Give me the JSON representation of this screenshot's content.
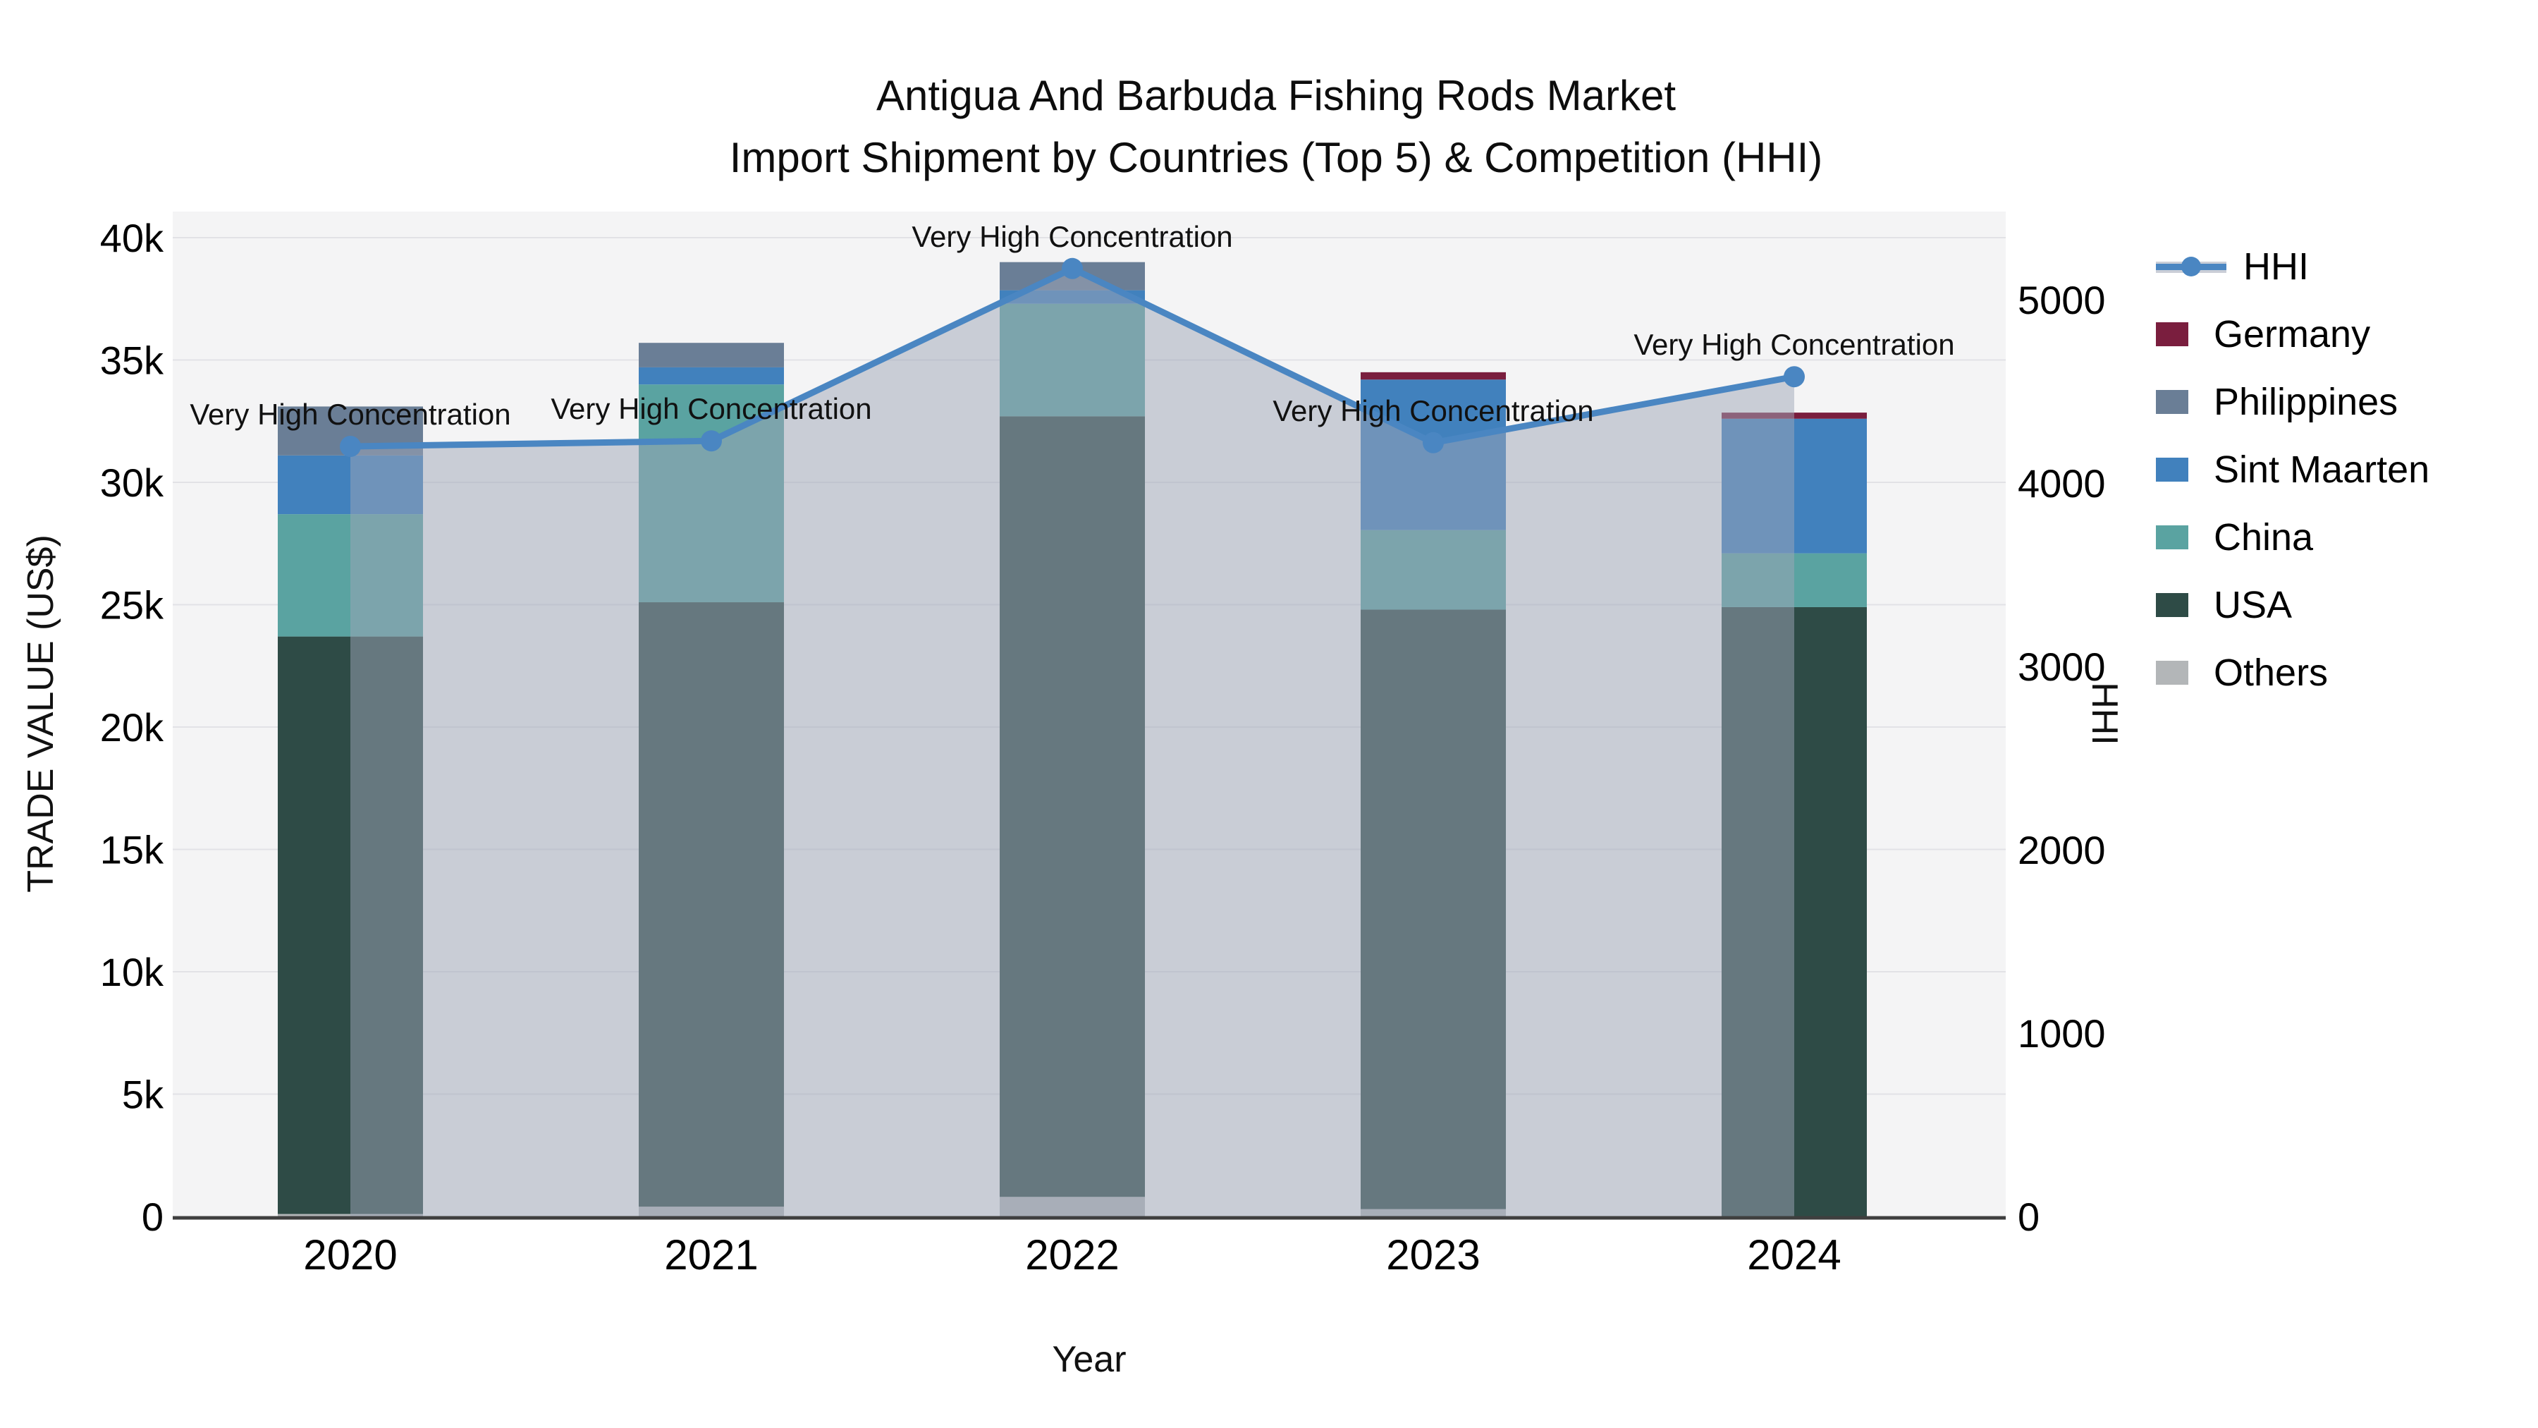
{
  "title": {
    "line1": "Antigua And Barbuda Fishing Rods Market",
    "line2": "Import Shipment by Countries (Top 5) & Competition (HHI)"
  },
  "axes": {
    "x_title": "Year",
    "y_left_title": "TRADE VALUE (US$)",
    "y_right_title": "HHI",
    "x_ticks": [
      "2020",
      "2021",
      "2022",
      "2023",
      "2024"
    ],
    "y_left_ticks": [
      {
        "value": 0,
        "label": "0"
      },
      {
        "value": 5000,
        "label": "5k"
      },
      {
        "value": 10000,
        "label": "10k"
      },
      {
        "value": 15000,
        "label": "15k"
      },
      {
        "value": 20000,
        "label": "20k"
      },
      {
        "value": 25000,
        "label": "25k"
      },
      {
        "value": 30000,
        "label": "30k"
      },
      {
        "value": 35000,
        "label": "35k"
      },
      {
        "value": 40000,
        "label": "40k"
      }
    ],
    "y_right_ticks": [
      {
        "value": 0,
        "label": "0"
      },
      {
        "value": 1000,
        "label": "1000"
      },
      {
        "value": 2000,
        "label": "2000"
      },
      {
        "value": 3000,
        "label": "3000"
      },
      {
        "value": 4000,
        "label": "4000"
      },
      {
        "value": 5000,
        "label": "5000"
      }
    ]
  },
  "chart_data": {
    "type": "bar",
    "subtype": "stacked-bars-with-secondary-axis-line-and-area-fill",
    "title": "Antigua And Barbuda Fishing Rods Market — Import Shipment by Countries (Top 5) & Competition (HHI)",
    "xlabel": "Year",
    "ylabel_left": "TRADE VALUE (US$)",
    "ylabel_right": "HHI",
    "categories": [
      "2020",
      "2021",
      "2022",
      "2023",
      "2024"
    ],
    "ylim_left": [
      0,
      41400
    ],
    "ylim_right": [
      0,
      5480
    ],
    "grid": true,
    "legend_position": "right",
    "series": [
      {
        "name": "Others",
        "color": "#b3b6b8",
        "values": [
          100,
          400,
          800,
          300,
          0
        ]
      },
      {
        "name": "USA",
        "color": "#2e4b46",
        "values": [
          23600,
          24700,
          31900,
          24500,
          24900
        ]
      },
      {
        "name": "China",
        "color": "#5aa3a1",
        "values": [
          5000,
          8900,
          4600,
          3250,
          2200
        ]
      },
      {
        "name": "Sint Maarten",
        "color": "#4181bd",
        "values": [
          2400,
          700,
          550,
          6150,
          5500
        ]
      },
      {
        "name": "Philippines",
        "color": "#6a7e96",
        "values": [
          2000,
          1000,
          1150,
          0,
          0
        ]
      },
      {
        "name": "Germany",
        "color": "#7a1e3e",
        "values": [
          0,
          0,
          0,
          300,
          250
        ]
      }
    ],
    "stack_totals": [
      33100,
      35700,
      39000,
      34500,
      32850
    ],
    "hhi_line": {
      "name": "HHI",
      "values": [
        4200,
        4230,
        5170,
        4220,
        4580
      ],
      "line_color": "#4a86c2",
      "marker_color": "#4a86c2",
      "area_fill_color": "rgba(158,166,183,0.5)"
    },
    "annotations": [
      {
        "text": "Very High Concentration",
        "year": "2020"
      },
      {
        "text": "Very High Concentration",
        "year": "2021"
      },
      {
        "text": "Very High Concentration",
        "year": "2022"
      },
      {
        "text": "Very High Concentration",
        "year": "2023"
      },
      {
        "text": "Very High Concentration",
        "year": "2024"
      }
    ]
  },
  "legend": {
    "items": [
      {
        "label": "HHI",
        "type": "line",
        "color": "#4a86c2"
      },
      {
        "label": "Germany",
        "type": "swatch",
        "color": "#7a1e3e"
      },
      {
        "label": "Philippines",
        "type": "swatch",
        "color": "#6a7e96"
      },
      {
        "label": "Sint Maarten",
        "type": "swatch",
        "color": "#4181bd"
      },
      {
        "label": "China",
        "type": "swatch",
        "color": "#5aa3a1"
      },
      {
        "label": "USA",
        "type": "swatch",
        "color": "#2e4b46"
      },
      {
        "label": "Others",
        "type": "swatch",
        "color": "#b3b6b8"
      }
    ]
  },
  "colors": {
    "plot_bg": "#f4f4f5",
    "grid": "#e2e2e6",
    "axis_line": "#3f3f3f",
    "text": "#000000"
  }
}
